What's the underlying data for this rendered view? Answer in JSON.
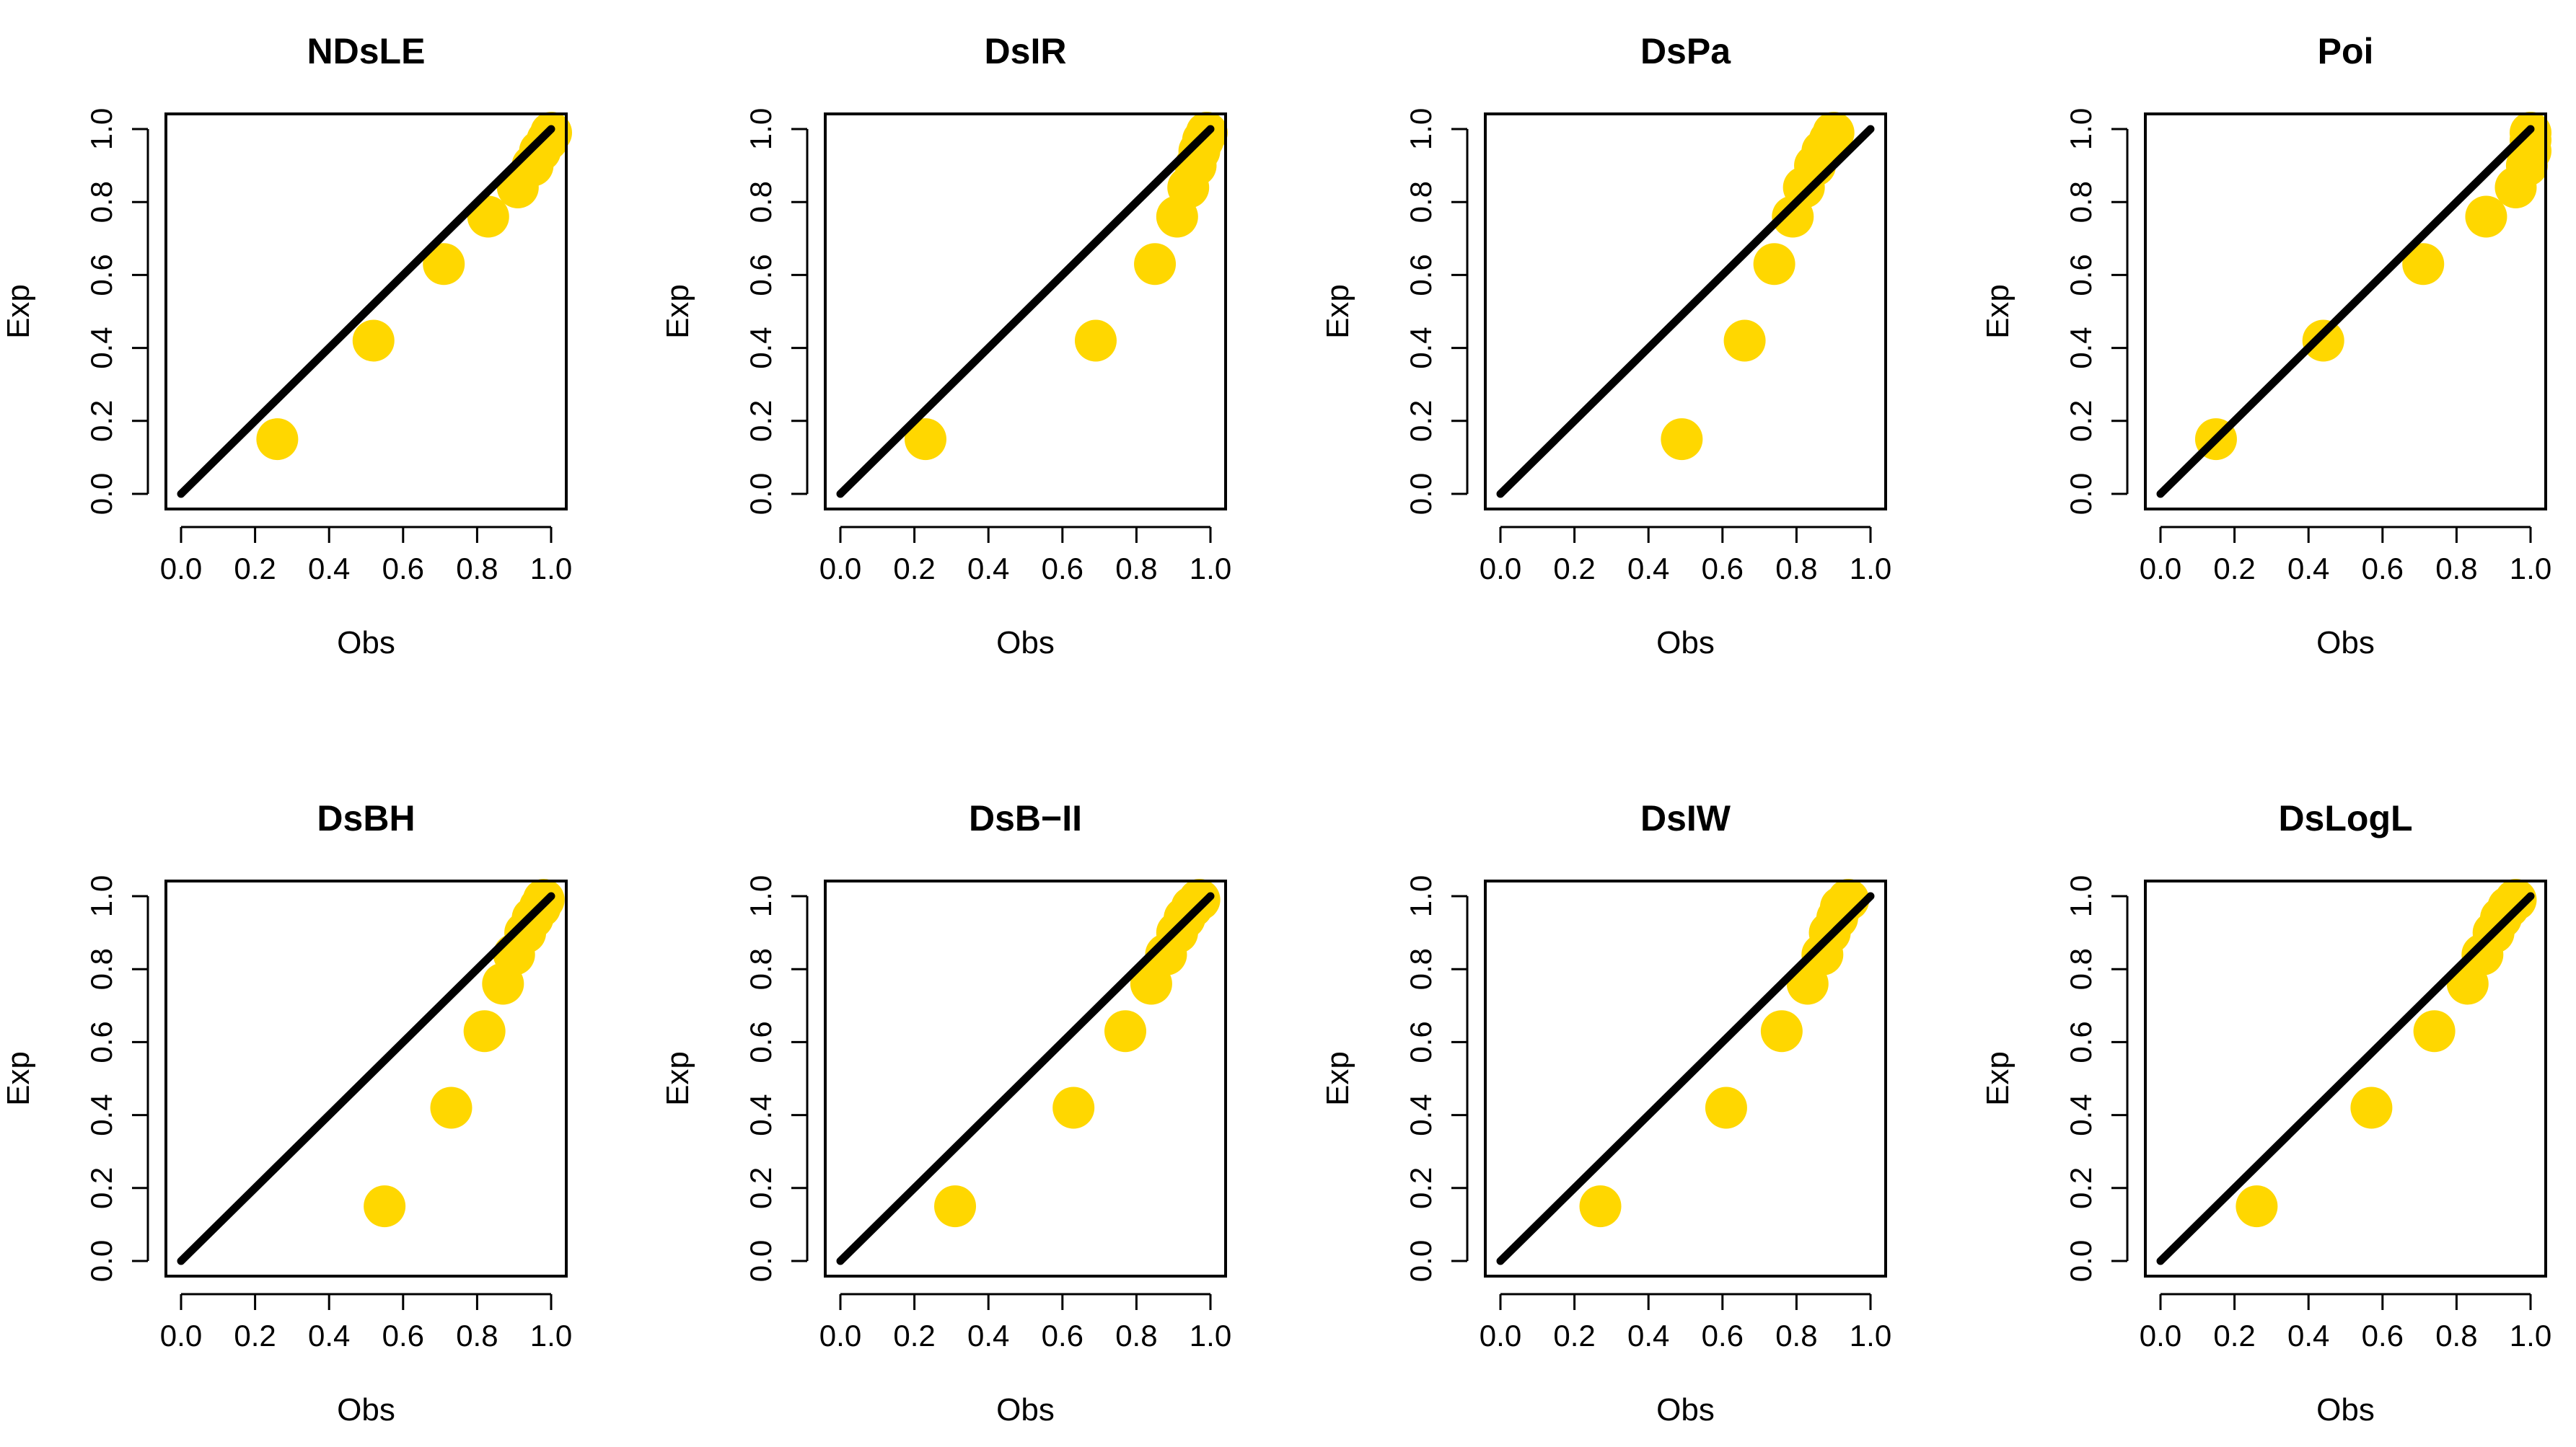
{
  "figure": {
    "colors": {
      "points": "#FFD700",
      "line": "#000000",
      "axes": "#000000"
    }
  },
  "chart_data": [
    {
      "type": "scatter",
      "title": "NDsLE",
      "xlabel": "Obs",
      "ylabel": "Exp",
      "xlim": [
        0,
        1
      ],
      "ylim": [
        0,
        1
      ],
      "xticks": [
        "0.0",
        "0.2",
        "0.4",
        "0.6",
        "0.8",
        "1.0"
      ],
      "yticks": [
        "0.0",
        "0.2",
        "0.4",
        "0.6",
        "0.8",
        "1.0"
      ],
      "reference_line": {
        "x": [
          0,
          1
        ],
        "y": [
          0,
          1
        ]
      },
      "series": [
        {
          "name": "points",
          "x": [
            0.26,
            0.52,
            0.71,
            0.83,
            0.91,
            0.95,
            0.97,
            0.99,
            1.0
          ],
          "y": [
            0.15,
            0.42,
            0.63,
            0.76,
            0.84,
            0.9,
            0.94,
            0.97,
            0.99
          ]
        }
      ]
    },
    {
      "type": "scatter",
      "title": "DsIR",
      "xlabel": "Obs",
      "ylabel": "Exp",
      "xlim": [
        0,
        1
      ],
      "ylim": [
        0,
        1
      ],
      "xticks": [
        "0.0",
        "0.2",
        "0.4",
        "0.6",
        "0.8",
        "1.0"
      ],
      "yticks": [
        "0.0",
        "0.2",
        "0.4",
        "0.6",
        "0.8",
        "1.0"
      ],
      "reference_line": {
        "x": [
          0,
          1
        ],
        "y": [
          0,
          1
        ]
      },
      "series": [
        {
          "name": "points",
          "x": [
            0.23,
            0.69,
            0.85,
            0.91,
            0.94,
            0.96,
            0.97,
            0.98,
            0.99
          ],
          "y": [
            0.15,
            0.42,
            0.63,
            0.76,
            0.84,
            0.9,
            0.94,
            0.97,
            0.99
          ]
        }
      ]
    },
    {
      "type": "scatter",
      "title": "DsPa",
      "xlabel": "Obs",
      "ylabel": "Exp",
      "xlim": [
        0,
        1
      ],
      "ylim": [
        0,
        1
      ],
      "xticks": [
        "0.0",
        "0.2",
        "0.4",
        "0.6",
        "0.8",
        "1.0"
      ],
      "yticks": [
        "0.0",
        "0.2",
        "0.4",
        "0.6",
        "0.8",
        "1.0"
      ],
      "reference_line": {
        "x": [
          0,
          1
        ],
        "y": [
          0,
          1
        ]
      },
      "series": [
        {
          "name": "points",
          "x": [
            0.49,
            0.66,
            0.74,
            0.79,
            0.82,
            0.85,
            0.87,
            0.89,
            0.9
          ],
          "y": [
            0.15,
            0.42,
            0.63,
            0.76,
            0.84,
            0.9,
            0.94,
            0.97,
            0.99
          ]
        }
      ]
    },
    {
      "type": "scatter",
      "title": "Poi",
      "xlabel": "Obs",
      "ylabel": "Exp",
      "xlim": [
        0,
        1
      ],
      "ylim": [
        0,
        1
      ],
      "xticks": [
        "0.0",
        "0.2",
        "0.4",
        "0.6",
        "0.8",
        "1.0"
      ],
      "yticks": [
        "0.0",
        "0.2",
        "0.4",
        "0.6",
        "0.8",
        "1.0"
      ],
      "reference_line": {
        "x": [
          0,
          1
        ],
        "y": [
          0,
          1
        ]
      },
      "series": [
        {
          "name": "points",
          "x": [
            0.15,
            0.44,
            0.71,
            0.88,
            0.96,
            0.99,
            1.0,
            1.0,
            1.0
          ],
          "y": [
            0.15,
            0.42,
            0.63,
            0.76,
            0.84,
            0.9,
            0.94,
            0.97,
            0.99
          ]
        }
      ]
    },
    {
      "type": "scatter",
      "title": "DsBH",
      "xlabel": "Obs",
      "ylabel": "Exp",
      "xlim": [
        0,
        1
      ],
      "ylim": [
        0,
        1
      ],
      "xticks": [
        "0.0",
        "0.2",
        "0.4",
        "0.6",
        "0.8",
        "1.0"
      ],
      "yticks": [
        "0.0",
        "0.2",
        "0.4",
        "0.6",
        "0.8",
        "1.0"
      ],
      "reference_line": {
        "x": [
          0,
          1
        ],
        "y": [
          0,
          1
        ]
      },
      "series": [
        {
          "name": "points",
          "x": [
            0.55,
            0.73,
            0.82,
            0.87,
            0.9,
            0.93,
            0.95,
            0.97,
            0.98
          ],
          "y": [
            0.15,
            0.42,
            0.63,
            0.76,
            0.84,
            0.9,
            0.94,
            0.97,
            0.99
          ]
        }
      ]
    },
    {
      "type": "scatter",
      "title": "DsB−II",
      "xlabel": "Obs",
      "ylabel": "Exp",
      "xlim": [
        0,
        1
      ],
      "ylim": [
        0,
        1
      ],
      "xticks": [
        "0.0",
        "0.2",
        "0.4",
        "0.6",
        "0.8",
        "1.0"
      ],
      "yticks": [
        "0.0",
        "0.2",
        "0.4",
        "0.6",
        "0.8",
        "1.0"
      ],
      "reference_line": {
        "x": [
          0,
          1
        ],
        "y": [
          0,
          1
        ]
      },
      "series": [
        {
          "name": "points",
          "x": [
            0.31,
            0.63,
            0.77,
            0.84,
            0.88,
            0.91,
            0.93,
            0.95,
            0.97
          ],
          "y": [
            0.15,
            0.42,
            0.63,
            0.76,
            0.84,
            0.9,
            0.94,
            0.97,
            0.99
          ]
        }
      ]
    },
    {
      "type": "scatter",
      "title": "DsIW",
      "xlabel": "Obs",
      "ylabel": "Exp",
      "xlim": [
        0,
        1
      ],
      "ylim": [
        0,
        1
      ],
      "xticks": [
        "0.0",
        "0.2",
        "0.4",
        "0.6",
        "0.8",
        "1.0"
      ],
      "yticks": [
        "0.0",
        "0.2",
        "0.4",
        "0.6",
        "0.8",
        "1.0"
      ],
      "reference_line": {
        "x": [
          0,
          1
        ],
        "y": [
          0,
          1
        ]
      },
      "series": [
        {
          "name": "points",
          "x": [
            0.27,
            0.61,
            0.76,
            0.83,
            0.87,
            0.89,
            0.91,
            0.92,
            0.94
          ],
          "y": [
            0.15,
            0.42,
            0.63,
            0.76,
            0.84,
            0.9,
            0.94,
            0.97,
            0.99
          ]
        }
      ]
    },
    {
      "type": "scatter",
      "title": "DsLogL",
      "xlabel": "Obs",
      "ylabel": "Exp",
      "xlim": [
        0,
        1
      ],
      "ylim": [
        0,
        1
      ],
      "xticks": [
        "0.0",
        "0.2",
        "0.4",
        "0.6",
        "0.8",
        "1.0"
      ],
      "yticks": [
        "0.0",
        "0.2",
        "0.4",
        "0.6",
        "0.8",
        "1.0"
      ],
      "reference_line": {
        "x": [
          0,
          1
        ],
        "y": [
          0,
          1
        ]
      },
      "series": [
        {
          "name": "points",
          "x": [
            0.26,
            0.57,
            0.74,
            0.83,
            0.87,
            0.9,
            0.92,
            0.94,
            0.96
          ],
          "y": [
            0.15,
            0.42,
            0.63,
            0.76,
            0.84,
            0.9,
            0.94,
            0.97,
            0.99
          ]
        }
      ]
    }
  ]
}
